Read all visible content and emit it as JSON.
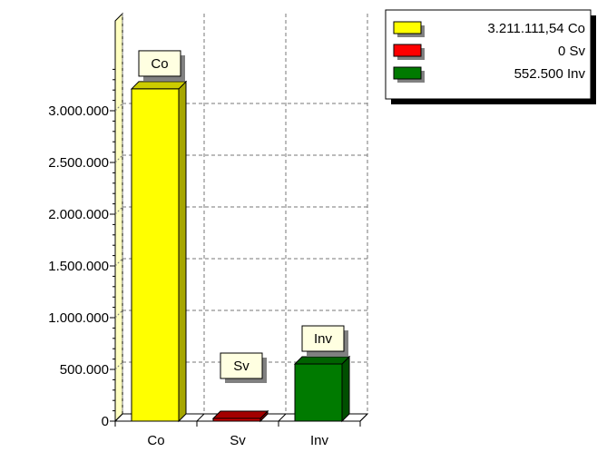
{
  "chart_data": {
    "type": "bar",
    "title": "",
    "xlabel": "",
    "ylabel": "",
    "categories": [
      "Co",
      "Sv",
      "Inv"
    ],
    "values": [
      3211111.54,
      0,
      552500
    ],
    "colors": [
      "#ffff00",
      "#cc0000",
      "#007a00"
    ],
    "data_labels": [
      "Co",
      "Sv",
      "Inv"
    ],
    "ylim": [
      0,
      3000000
    ],
    "yticks": [
      0,
      500000,
      1000000,
      1500000,
      2000000,
      2500000,
      3000000
    ],
    "ytick_labels": [
      "0",
      "500.000",
      "1.000.000",
      "1.500.000",
      "2.000.000",
      "2.500.000",
      "3.000.000"
    ],
    "grid": true,
    "legend_position": "top-right",
    "legend": [
      {
        "text": "3.211.111,54 Co",
        "color": "#ffff00"
      },
      {
        "text": "0 Sv",
        "color": "#ff0000"
      },
      {
        "text": "552.500 Inv",
        "color": "#007a00"
      }
    ]
  }
}
